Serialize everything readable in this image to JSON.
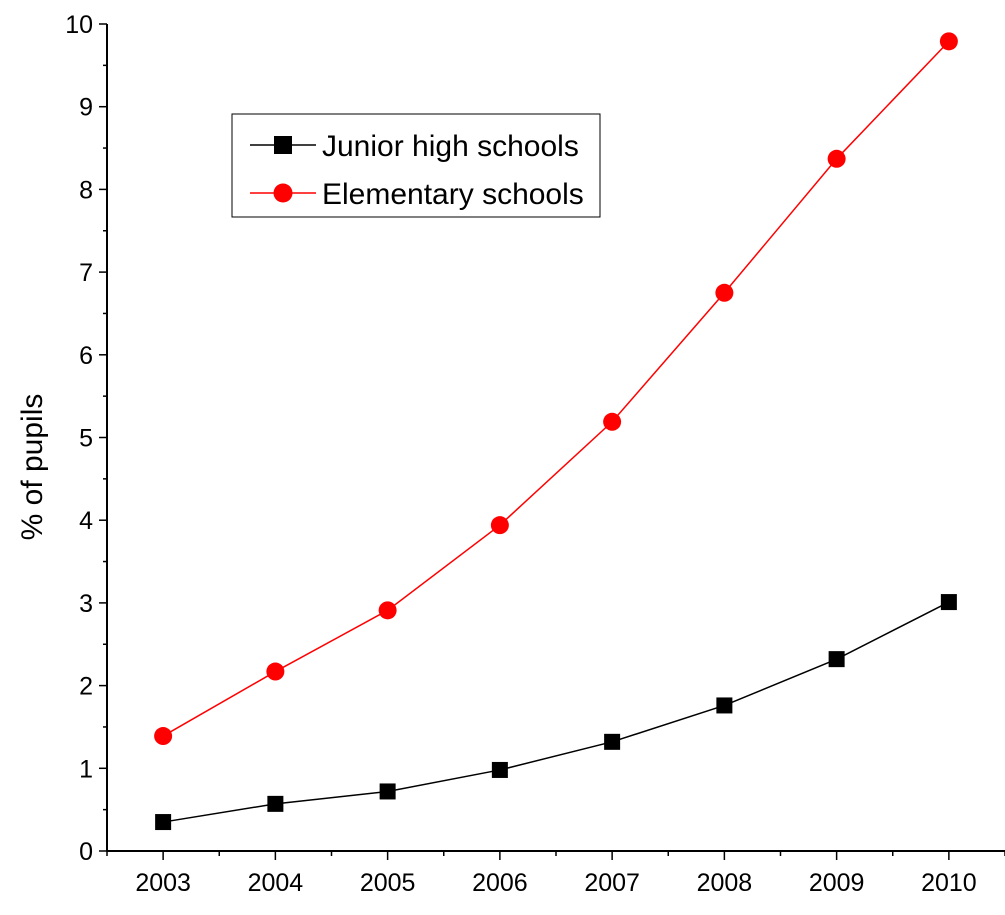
{
  "chart_data": {
    "type": "line",
    "title": "",
    "xlabel": "",
    "ylabel": "% of pupils",
    "x": [
      2003,
      2004,
      2005,
      2006,
      2007,
      2008,
      2009,
      2010
    ],
    "xlim": [
      2002.5,
      2010.5
    ],
    "ylim": [
      0,
      10
    ],
    "yticks": [
      0,
      1,
      2,
      3,
      4,
      5,
      6,
      7,
      8,
      9,
      10
    ],
    "grid": false,
    "legend_position": "top-left",
    "series": [
      {
        "name": "Junior high schools",
        "color": "#000000",
        "marker": "square",
        "values": [
          0.35,
          0.57,
          0.72,
          0.98,
          1.32,
          1.76,
          2.32,
          3.01
        ]
      },
      {
        "name": "Elementary schools",
        "color": "#ff0000",
        "marker": "circle",
        "values": [
          1.39,
          2.17,
          2.91,
          3.94,
          5.19,
          6.75,
          8.37,
          9.79
        ]
      }
    ]
  }
}
